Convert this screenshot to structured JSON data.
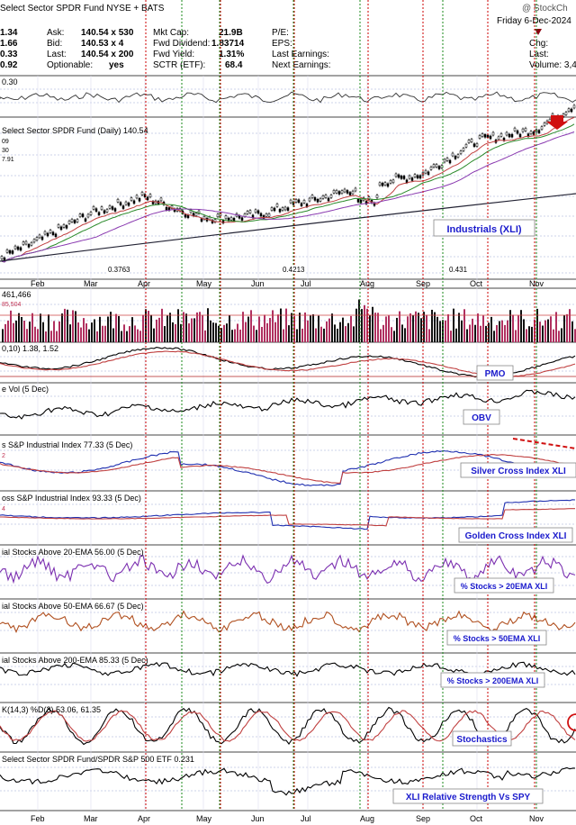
{
  "header": {
    "title": "Select Sector SPDR Fund NYSE + BATS",
    "brand": "@ StockCh",
    "date": "Friday  6-Dec-2024",
    "left_values": [
      "1.34",
      "1.66",
      "0.33",
      "0.92"
    ],
    "quote": [
      {
        "label": "Ask:",
        "value": "140.54 x 530"
      },
      {
        "label": "Bid:",
        "value": "140.53 x 4"
      },
      {
        "label": "Last:",
        "value": "140.54 x 200"
      },
      {
        "label": "Optionable:",
        "value": "yes"
      }
    ],
    "fundamentals": [
      {
        "label": "Mkt Cap:",
        "value": "21.9B"
      },
      {
        "label": "Fwd Dividend:",
        "value": "1.83714"
      },
      {
        "label": "Fwd Yield:",
        "value": "1.31%"
      },
      {
        "label": "SCTR (ETF):",
        "value": "68.4"
      }
    ],
    "earnings": [
      "P/E:",
      "EPS:",
      "Last Earnings:",
      "Next Earnings:"
    ],
    "right_labels": [
      "Chg:",
      "Last:",
      "Volume: 3,4"
    ]
  },
  "panels": {
    "top_value": "0.30",
    "price_title": "Select Sector SPDR Fund (Daily) 140.54",
    "price_small": [
      "09",
      "30",
      "7.91"
    ],
    "price_callout": "Industrials (XLI)",
    "fib_labels": [
      "0.3763",
      "0.4213",
      "0.431"
    ],
    "volume_title": "461,466",
    "volume_small": "85,504",
    "pmo_title": "0,10) 1.38, 1.52",
    "pmo_callout": "PMO",
    "obv_title": "e Vol (5 Dec)",
    "obv_callout": "OBV",
    "silver_title": "s S&P Industrial Index 77.33 (5 Dec)",
    "silver_small": "2",
    "silver_callout": "Silver Cross Index XLI",
    "golden_title": "oss S&P Industrial Index 93.33 (5 Dec)",
    "golden_small": "4",
    "golden_callout": "Golden Cross Index XLI",
    "ema20_title": "ial Stocks Above 20-EMA 56.00 (5 Dec)",
    "ema20_callout": "% Stocks > 20EMA XLI",
    "ema50_title": "ial Stocks Above 50-EMA 66.67 (5 Dec)",
    "ema50_callout": "% Stocks > 50EMA XLI",
    "ema200_title": "ial Stocks Above 200-EMA 85.33 (5 Dec)",
    "ema200_callout": "% Stocks > 200EMA XLI",
    "stoch_title": "K(14,3) %D(3) 53.06, 61.35",
    "stoch_callout": "Stochastics",
    "rs_title": "Select Sector SPDR Fund/SPDR S&P 500 ETF 0.231",
    "rs_callout": "XLI Relative Strength Vs SPY"
  },
  "months": [
    "Feb",
    "Mar",
    "Apr",
    "May",
    "Jun",
    "Jul",
    "Aug",
    "Sep",
    "Oct",
    "Nov"
  ],
  "chart_data": {
    "type": "line",
    "title": "Select Sector SPDR Fund (Daily) 140.54",
    "x_months": [
      "Feb",
      "Mar",
      "Apr",
      "May",
      "Jun",
      "Jul",
      "Aug",
      "Sep",
      "Oct",
      "Nov"
    ],
    "price_series": [
      {
        "month": "Feb",
        "close": 116
      },
      {
        "month": "Mar",
        "close": 121
      },
      {
        "month": "Apr",
        "close": 124
      },
      {
        "month": "May",
        "close": 122
      },
      {
        "month": "Jun",
        "close": 122
      },
      {
        "month": "Jul",
        "close": 123
      },
      {
        "month": "Aug",
        "close": 126
      },
      {
        "month": "Sep",
        "close": 128
      },
      {
        "month": "Oct",
        "close": 134
      },
      {
        "month": "Nov",
        "close": 136
      },
      {
        "month": "Dec",
        "close": 140.54
      }
    ],
    "last_close": 140.54,
    "indicators": {
      "pmo": [
        1.38,
        1.52
      ],
      "silver_cross_index": 77.33,
      "golden_cross_index": 93.33,
      "pct_above_20ema": 56.0,
      "pct_above_50ema": 66.67,
      "pct_above_200ema": 85.33,
      "stochastics": {
        "k": 53.06,
        "d": 61.35
      },
      "relative_strength_vs_spy": 0.231
    },
    "colors": {
      "red_line": "#cc0000",
      "green_line": "#1a8a1a",
      "callout_text": "#1a1acc",
      "volume_bar": "#b03060"
    }
  }
}
